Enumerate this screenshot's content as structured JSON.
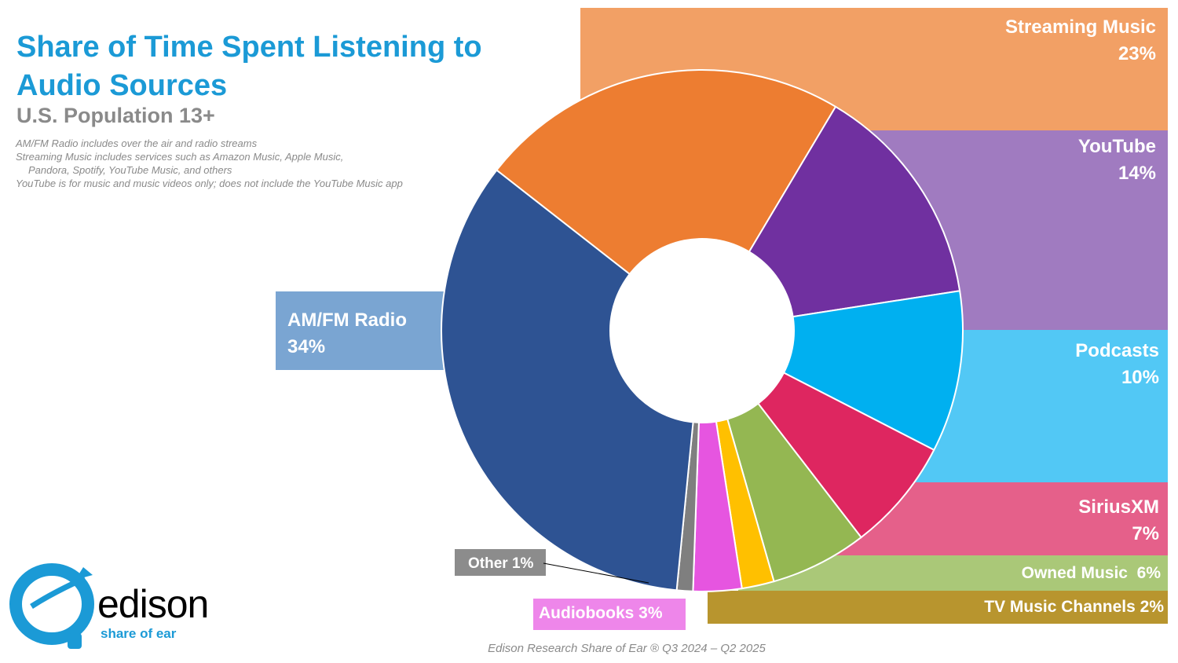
{
  "header": {
    "title": "Share of Time Spent Listening to Audio Sources",
    "subtitle": "U.S. Population 13+",
    "notes": [
      "AM/FM Radio includes over the air and radio streams",
      "Streaming Music includes services such as Amazon Music, Apple Music,",
      "Pandora, Spotify, YouTube Music, and others",
      "YouTube is for music and music videos only; does not include the YouTube Music app"
    ]
  },
  "footer": {
    "source": "Edison Research Share of Ear ® Q3 2024 – Q2 2025"
  },
  "logo": {
    "name": "edison",
    "tagline": "share of ear"
  },
  "chart_data": {
    "type": "pie",
    "donut": true,
    "unit": "%",
    "slices": [
      {
        "name": "Streaming Music",
        "value": 23,
        "label_value": "23%",
        "color": "#ed7d31",
        "band_color": "#f2a065"
      },
      {
        "name": "YouTube",
        "value": 14,
        "label_value": "14%",
        "color": "#7030a0",
        "band_color": "#a07bc0"
      },
      {
        "name": "Podcasts",
        "value": 10,
        "label_value": "10%",
        "color": "#00b0f0",
        "band_color": "#52c8f5"
      },
      {
        "name": "SiriusXM",
        "value": 7,
        "label_value": "7%",
        "color": "#de2660",
        "band_color": "#e5608a"
      },
      {
        "name": "Owned Music",
        "value": 6,
        "label_value": "6%",
        "color": "#94b752",
        "band_color": "#aac878"
      },
      {
        "name": "TV Music Channels",
        "value": 2,
        "label_value": "2%",
        "color": "#ffc000",
        "band_color": "#b8952e"
      },
      {
        "name": "Audiobooks",
        "value": 3,
        "label_value": "3%",
        "color": "#e655e0",
        "band_color": "#ee86ea"
      },
      {
        "name": "Other",
        "value": 1,
        "label_value": "1%",
        "color": "#7f7f7f",
        "band_color": "#8c8c8c"
      },
      {
        "name": "AM/FM Radio",
        "value": 34,
        "label_value": "34%",
        "color": "#2e5393",
        "band_color": "#7aa5d2"
      }
    ]
  }
}
